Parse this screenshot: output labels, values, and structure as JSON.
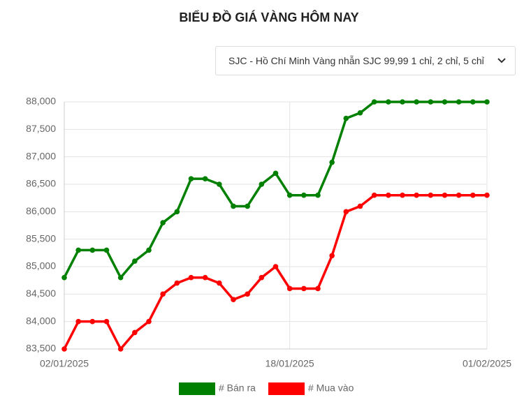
{
  "chart_data": {
    "type": "line",
    "title": "BIỂU ĐỒ GIÁ VÀNG HÔM NAY",
    "categories": [
      "02/01/2025",
      null,
      null,
      null,
      null,
      null,
      null,
      null,
      null,
      null,
      null,
      null,
      null,
      null,
      null,
      null,
      "18/01/2025",
      null,
      null,
      null,
      null,
      null,
      null,
      null,
      null,
      null,
      null,
      null,
      null,
      null,
      "01/02/2025"
    ],
    "series": [
      {
        "name": "# Bán ra",
        "color": "#008000",
        "values": [
          84800,
          85300,
          85300,
          85300,
          84800,
          85100,
          85300,
          85800,
          86000,
          86600,
          86600,
          86500,
          86100,
          86100,
          86500,
          86700,
          86300,
          86300,
          86300,
          86900,
          87700,
          87800,
          88000,
          88000,
          88000,
          88000,
          88000,
          88000,
          88000,
          88000,
          88000
        ]
      },
      {
        "name": "# Mua vào",
        "color": "#ff0000",
        "values": [
          83500,
          84000,
          84000,
          84000,
          83500,
          83800,
          84000,
          84500,
          84700,
          84800,
          84800,
          84700,
          84400,
          84500,
          84800,
          85000,
          84600,
          84600,
          84600,
          85200,
          86000,
          86100,
          86300,
          86300,
          86300,
          86300,
          86300,
          86300,
          86300,
          86300,
          86300
        ]
      }
    ],
    "ylim": [
      83500,
      88000
    ],
    "yticks": [
      {
        "value": 83500,
        "label": "83,500"
      },
      {
        "value": 84000,
        "label": "84,000"
      },
      {
        "value": 84500,
        "label": "84,500"
      },
      {
        "value": 85000,
        "label": "85,000"
      },
      {
        "value": 85500,
        "label": "85,500"
      },
      {
        "value": 86000,
        "label": "86,000"
      },
      {
        "value": 86500,
        "label": "86,500"
      },
      {
        "value": 87000,
        "label": "87,000"
      },
      {
        "value": 87500,
        "label": "87,500"
      },
      {
        "value": 88000,
        "label": "88,000"
      }
    ],
    "grid": true
  },
  "dropdown": {
    "selected": "SJC - Hồ Chí Minh Vàng nhẫn SJC 99,99 1 chỉ, 2 chỉ, 5 chỉ"
  }
}
